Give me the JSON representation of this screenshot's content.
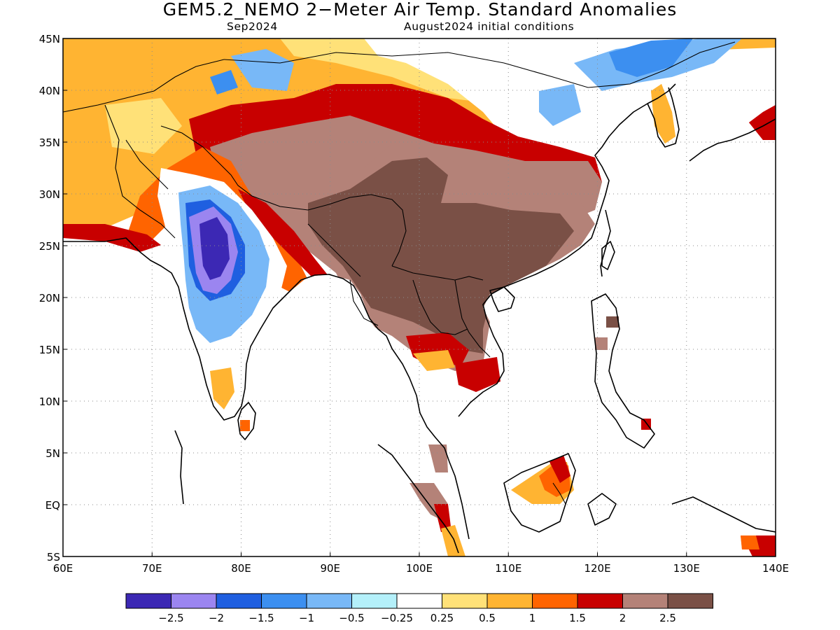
{
  "title": "GEM5.2_NEMO 2−Meter Air Temp. Standard Anomalies",
  "subtitle_left": "Sep2024",
  "subtitle_right": "August2024 initial conditions",
  "map": {
    "lon_range": [
      60,
      140
    ],
    "lat_range": [
      -5,
      45
    ],
    "lon_ticks": [
      "60E",
      "70E",
      "80E",
      "90E",
      "100E",
      "110E",
      "120E",
      "130E",
      "140E"
    ],
    "lat_ticks": [
      "5S",
      "EQ",
      "5N",
      "10N",
      "15N",
      "20N",
      "25N",
      "30N",
      "35N",
      "40N",
      "45N"
    ],
    "grid": true
  },
  "colorbar": {
    "colors": [
      "#3c28b4",
      "#9b85f0",
      "#1f5fe0",
      "#3c8ff0",
      "#78b8f7",
      "#b4f0fa",
      "#ffffff",
      "#ffe178",
      "#ffb432",
      "#ff6400",
      "#c80000",
      "#b48278",
      "#7a5046"
    ],
    "labels": [
      "−2.5",
      "−2",
      "−1.5",
      "−1",
      "−0.5",
      "−0.25",
      "0.25",
      "0.5",
      "1",
      "1.5",
      "2",
      "2.5"
    ]
  },
  "anomaly_regions": [
    {
      "name": "southeast-asia-brown",
      "level": 2.5
    },
    {
      "name": "tibet-brown",
      "level": 2.5
    },
    {
      "name": "himalaya-rosy",
      "level": 2.25
    },
    {
      "name": "china-red-band",
      "level": 2
    },
    {
      "name": "china-orange-band",
      "level": 1.5
    },
    {
      "name": "west-asia-amber",
      "level": 0.75
    },
    {
      "name": "pakistan-deep-orange",
      "level": 1.25
    },
    {
      "name": "arabian-coast-red",
      "level": 1.75
    },
    {
      "name": "india-west-blue",
      "level": -1
    },
    {
      "name": "india-core-purple",
      "level": -2.25
    },
    {
      "name": "india-core-violet",
      "level": -2.75
    },
    {
      "name": "mongolia-blue",
      "level": -0.75
    },
    {
      "name": "manchuria-blue",
      "level": -1.25
    },
    {
      "name": "borneo-orange",
      "level": 1.25
    },
    {
      "name": "sumatra-rosy",
      "level": 2.25
    }
  ]
}
